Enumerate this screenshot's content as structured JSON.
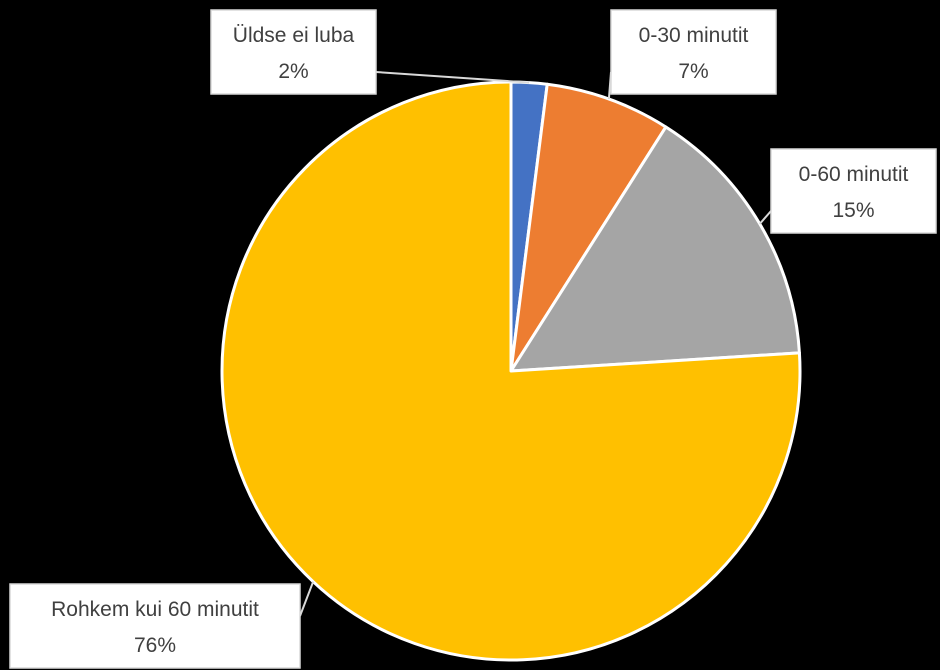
{
  "chart_data": {
    "type": "pie",
    "title": "",
    "start_angle_deg": 0,
    "direction": "clockwise",
    "slices": [
      {
        "label": "Üldse ei luba",
        "value": 2,
        "value_label": "2%",
        "color": "#4472C4"
      },
      {
        "label": "0-30 minutit",
        "value": 7,
        "value_label": "7%",
        "color": "#ED7D31"
      },
      {
        "label": "0-60 minutit",
        "value": 15,
        "value_label": "15%",
        "color": "#A5A5A5"
      },
      {
        "label": "Rohkem kui 60 minutit",
        "value": 76,
        "value_label": "76%",
        "color": "#FFC000"
      }
    ],
    "legend": "none",
    "data_labels": "callouts"
  },
  "colors": {
    "background": "#000000",
    "slice_border": "#FFFFFF",
    "callout_fill": "#FFFFFF",
    "callout_border": "#D9D9D9",
    "callout_text": "#404040",
    "leader_line": "#D9D9D9"
  }
}
